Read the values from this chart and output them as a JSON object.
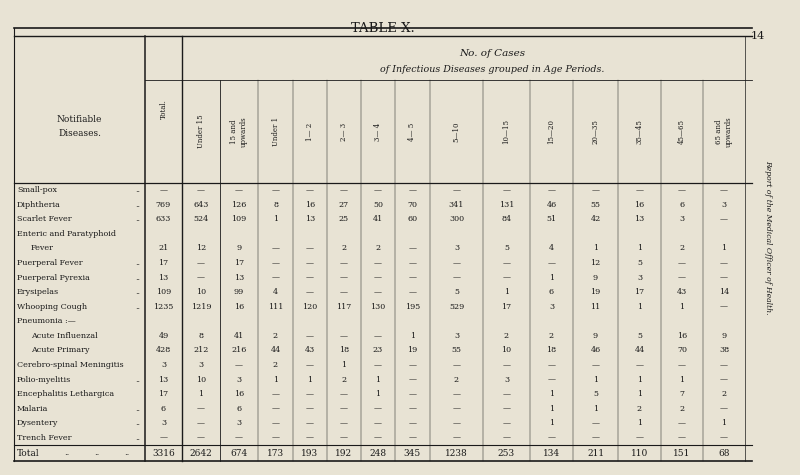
{
  "title": "TABLE X.",
  "subtitle1": "No. of Cases",
  "subtitle2": "of Infectious Diseases grouped in Age Periods.",
  "left_header1": "Notifiable",
  "left_header2": "Diseases.",
  "bg_color": "#e8e3d4",
  "text_color": "#1a1a1a",
  "col_headers": [
    "Total.",
    "Under 15",
    "15 and\nupwards",
    "Under 1",
    "1— 2",
    "2— 3",
    "3— 4",
    "4— 5",
    "5—10",
    "10—15",
    "15—20",
    "20—35",
    "35—45",
    "45—65",
    "65 and\nupwards"
  ],
  "rows": [
    {
      "name": "Small-pox",
      "suffix": " ..\t..",
      "indent": false,
      "values": [
        "—",
        "—",
        "—",
        "—",
        "—",
        "—",
        "—",
        "—",
        "—",
        "—",
        "—",
        "—",
        "—",
        "—",
        "—"
      ]
    },
    {
      "name": "Diphtheria",
      "suffix": " ..\t..",
      "indent": false,
      "values": [
        "769",
        "643",
        "126",
        "8",
        "16",
        "27",
        "50",
        "70",
        "341",
        "131",
        "46",
        "55",
        "16",
        "6",
        "3"
      ]
    },
    {
      "name": "Scarlet Fever",
      "suffix": " ..\t..",
      "indent": false,
      "values": [
        "633",
        "524",
        "109",
        "1",
        "13",
        "25",
        "41",
        "60",
        "300",
        "84",
        "51",
        "42",
        "13",
        "3",
        "—"
      ]
    },
    {
      "name": "Enteric and Paratyphoid",
      "suffix": "",
      "indent": false,
      "values": [
        "",
        "",
        "",
        "",
        "",
        "",
        "",
        "",
        "",
        "",
        "",
        "",
        "",
        "",
        ""
      ]
    },
    {
      "name": "Fever",
      "suffix": " ..\t..",
      "indent": true,
      "values": [
        "21",
        "12",
        "9",
        "—",
        "—",
        "2",
        "2",
        "—",
        "3",
        "5",
        "4",
        "1",
        "1",
        "2",
        "1"
      ]
    },
    {
      "name": "Puerperal Fever",
      "suffix": " ..",
      "indent": false,
      "values": [
        "17",
        "—",
        "17",
        "—",
        "—",
        "—",
        "—",
        "—",
        "—",
        "—",
        "—",
        "12",
        "5",
        "—",
        "—"
      ]
    },
    {
      "name": "Puerperal Pyrexia",
      "suffix": " ..",
      "indent": false,
      "values": [
        "13",
        "—",
        "13",
        "—",
        "—",
        "—",
        "—",
        "—",
        "—",
        "—",
        "1",
        "9",
        "3",
        "—",
        "—"
      ]
    },
    {
      "name": "Erysipelas",
      "suffix": " ..\t..",
      "indent": false,
      "values": [
        "109",
        "10",
        "99",
        "4",
        "—",
        "—",
        "—",
        "—",
        "5",
        "1",
        "6",
        "19",
        "17",
        "43",
        "14"
      ]
    },
    {
      "name": "Whooping Cough",
      "suffix": " ..",
      "indent": false,
      "values": [
        "1235",
        "1219",
        "16",
        "111",
        "120",
        "117",
        "130",
        "195",
        "529",
        "17",
        "3",
        "11",
        "1",
        "1",
        "—"
      ]
    },
    {
      "name": "Pneumonia :—",
      "suffix": "",
      "indent": false,
      "values": [
        "",
        "",
        "",
        "",
        "",
        "",
        "",
        "",
        "",
        "",
        "",
        "",
        "",
        "",
        ""
      ]
    },
    {
      "name": "Acute Influenzal",
      "suffix": " ..",
      "indent": true,
      "values": [
        "49",
        "8",
        "41",
        "2",
        "—",
        "—",
        "—",
        "1",
        "3",
        "2",
        "2",
        "9",
        "5",
        "16",
        "9"
      ]
    },
    {
      "name": "Acute Primary",
      "suffix": " ..",
      "indent": true,
      "values": [
        "428",
        "212",
        "216",
        "44",
        "43",
        "18",
        "23",
        "19",
        "55",
        "10",
        "18",
        "46",
        "44",
        "70",
        "38"
      ]
    },
    {
      "name": "Cerebro-spinal Meningitis",
      "suffix": "",
      "indent": false,
      "values": [
        "3",
        "3",
        "—",
        "2",
        "—",
        "1",
        "—",
        "—",
        "—",
        "—",
        "—",
        "—",
        "—",
        "—",
        "—"
      ]
    },
    {
      "name": "Polio-myelitis",
      "suffix": " ..\t..",
      "indent": false,
      "values": [
        "13",
        "10",
        "3",
        "1",
        "1",
        "2",
        "1",
        "—",
        "2",
        "3",
        "—",
        "1",
        "1",
        "1",
        "—"
      ]
    },
    {
      "name": "Encephalitis Lethargica",
      "suffix": "",
      "indent": false,
      "values": [
        "17",
        "1",
        "16",
        "—",
        "—",
        "—",
        "1",
        "—",
        "—",
        "—",
        "1",
        "5",
        "1",
        "7",
        "2"
      ]
    },
    {
      "name": "Malaria",
      "suffix": " ..\t ..",
      "indent": false,
      "values": [
        "6",
        "—",
        "6",
        "—",
        "—",
        "—",
        "—",
        "—",
        "—",
        "—",
        "1",
        "1",
        "2",
        "2",
        "—"
      ]
    },
    {
      "name": "Dysentery",
      "suffix": " ..\t..",
      "indent": false,
      "values": [
        "3",
        "—",
        "3",
        "—",
        "—",
        "—",
        "—",
        "—",
        "—",
        "—",
        "1",
        "—",
        "1",
        "—",
        "1"
      ]
    },
    {
      "name": "Trench Fever",
      "suffix": " ..\t..",
      "indent": false,
      "values": [
        "—",
        "—",
        "—",
        "—",
        "—",
        "—",
        "—",
        "—",
        "—",
        "—",
        "—",
        "—",
        "—",
        "—",
        "—"
      ]
    }
  ],
  "total_row": {
    "name": "Total",
    "values": [
      "3316",
      "2642",
      "674",
      "173",
      "193",
      "192",
      "248",
      "345",
      "1238",
      "253",
      "134",
      "211",
      "110",
      "151",
      "68"
    ]
  },
  "side_text": "Report of the Medical Officer of Health.",
  "page_num": "14"
}
